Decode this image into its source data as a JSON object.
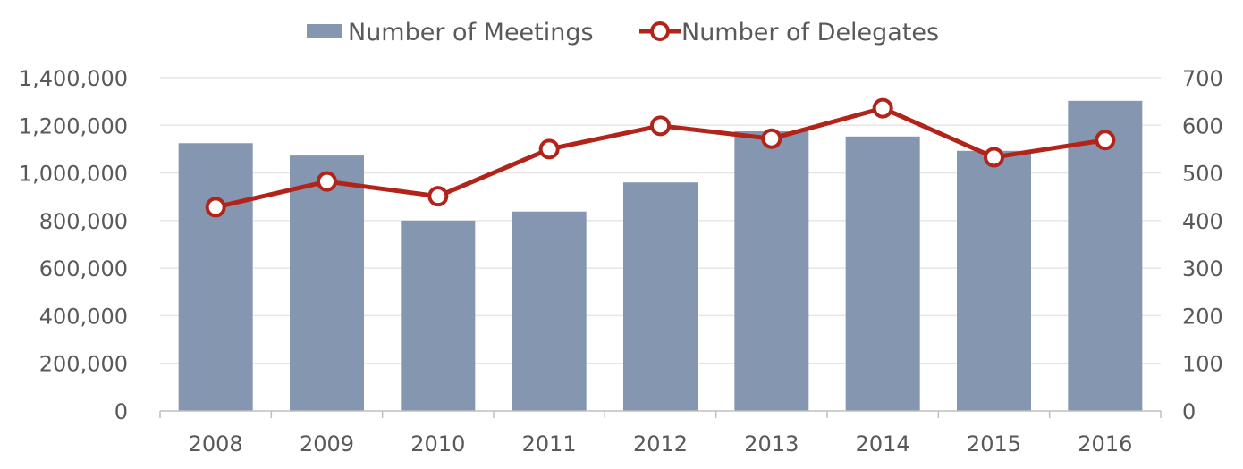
{
  "chart_data": {
    "type": "bar",
    "categories": [
      "2008",
      "2009",
      "2010",
      "2011",
      "2012",
      "2013",
      "2014",
      "2015",
      "2016"
    ],
    "series": [
      {
        "name": "Number of Meetings",
        "type": "bar",
        "axis": "left",
        "color": "#8496B0",
        "values": [
          1125000,
          1073000,
          800000,
          838000,
          960000,
          1175000,
          1153000,
          1093000,
          1303000
        ]
      },
      {
        "name": "Number of Delegates",
        "type": "line",
        "axis": "right",
        "color": "#B2231A",
        "values": [
          428,
          482,
          451,
          550,
          599,
          572,
          636,
          533,
          569
        ]
      }
    ],
    "y_left": {
      "min": 0,
      "max": 1400000,
      "ticks": [
        "0",
        "200,000",
        "400,000",
        "600,000",
        "800,000",
        "1,000,000",
        "1,200,000",
        "1,400,000"
      ]
    },
    "y_right": {
      "min": 0,
      "max": 700,
      "ticks": [
        "0",
        "100",
        "200",
        "300",
        "400",
        "500",
        "600",
        "700"
      ]
    },
    "grid": true,
    "legend_position": "top-center",
    "xlabel": "",
    "ylabel": "",
    "title": ""
  }
}
